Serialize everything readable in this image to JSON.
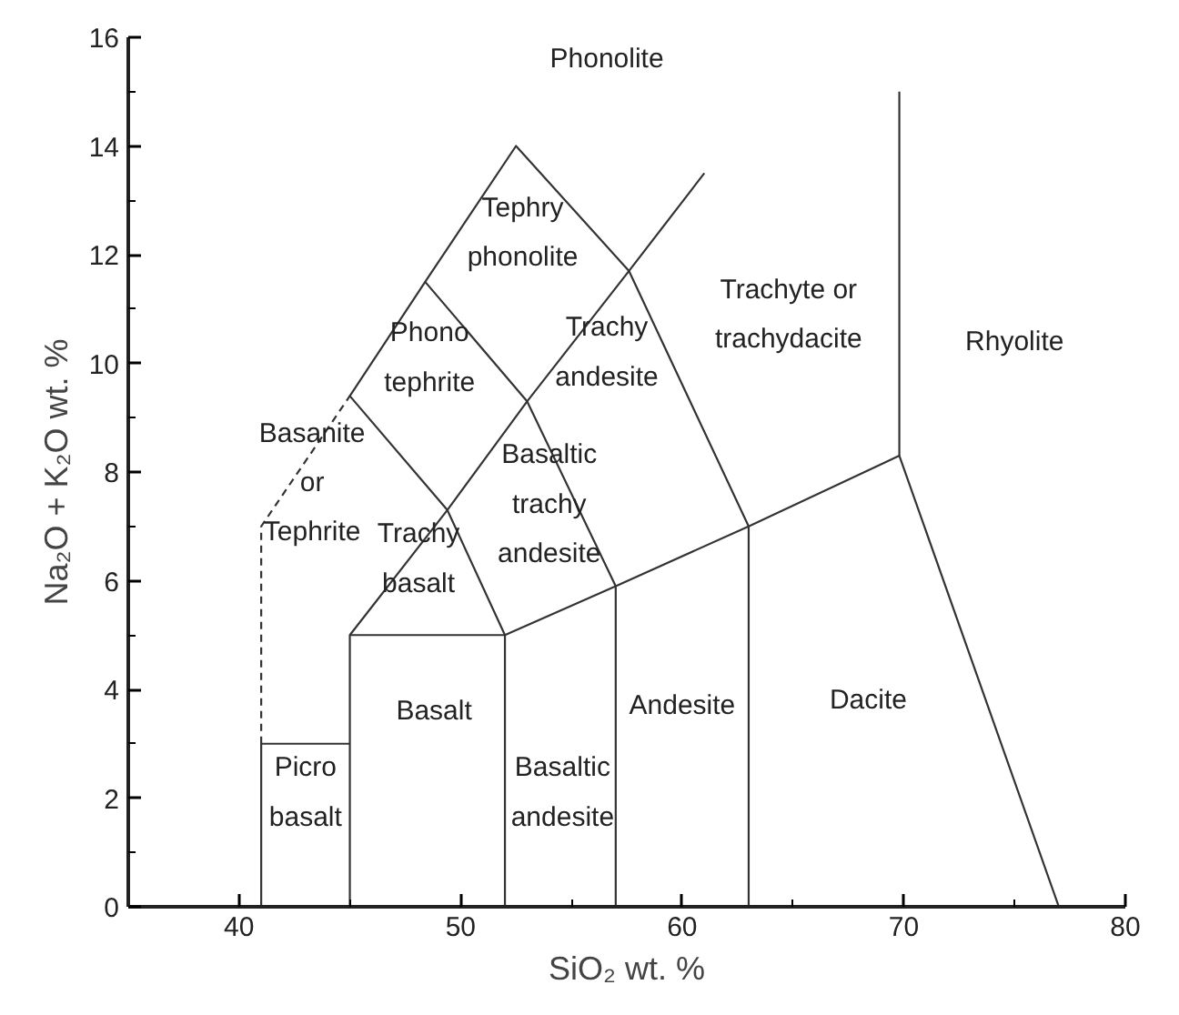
{
  "chart_data": {
    "type": "line",
    "xlabel": "SiO₂ wt. %",
    "ylabel": "Na₂O + K₂O wt. %",
    "xlim": [
      35,
      80
    ],
    "ylim": [
      0,
      16
    ],
    "xticks": [
      40,
      {
        "value": 45,
        "label": null
      },
      50,
      {
        "value": 55,
        "label": null
      },
      60,
      {
        "value": 65,
        "label": null
      },
      70,
      {
        "value": 75,
        "label": null
      },
      80
    ],
    "yticks": [
      0,
      {
        "value": 1,
        "label": null
      },
      2,
      {
        "value": 3,
        "label": null
      },
      4,
      {
        "value": 5,
        "label": null
      },
      6,
      {
        "value": 7,
        "label": null
      },
      8,
      {
        "value": 9,
        "label": null
      },
      10,
      {
        "value": 11,
        "label": null
      },
      12,
      {
        "value": 13,
        "label": null
      },
      14,
      {
        "value": 15,
        "label": null
      },
      16
    ],
    "grid": false,
    "marker": "none",
    "line_style": "solid",
    "series": [
      {
        "color": "#333333",
        "x": [
          41,
          41,
          45
        ],
        "values": [
          0,
          3,
          3
        ]
      },
      {
        "color": "#333333",
        "x": [
          45,
          45,
          52,
          52
        ],
        "values": [
          0,
          5,
          5,
          0
        ]
      },
      {
        "color": "#333333",
        "x": [
          52,
          57,
          63,
          69.8,
          77
        ],
        "values": [
          5,
          5.9,
          7,
          8.3,
          0
        ]
      },
      {
        "color": "#333333",
        "x": [
          69.8,
          69.8
        ],
        "values": [
          8.3,
          15
        ]
      },
      {
        "color": "#333333",
        "x": [
          45,
          49.4,
          53,
          57.6,
          61
        ],
        "values": [
          5,
          7.3,
          9.3,
          11.7,
          13.5
        ]
      },
      {
        "color": "#333333",
        "x": [
          52,
          49.4,
          45,
          48.4,
          52.5,
          57.6,
          63,
          63
        ],
        "values": [
          5,
          7.3,
          9.4,
          11.5,
          14,
          11.7,
          7,
          0
        ]
      },
      {
        "color": "#333333",
        "x": [
          57,
          57,
          53,
          48.4
        ],
        "values": [
          0,
          5.9,
          9.3,
          11.5
        ]
      },
      {
        "color": "#333333",
        "x": [
          41,
          41,
          45
        ],
        "values": [
          3,
          7,
          9.4
        ],
        "line_style": "dashed"
      }
    ],
    "annotations": [
      "Phonolite",
      "Tephry\nphonolite",
      "Trachyte or\ntrachydacite",
      "Rhyolite",
      "Phono\ntephrite",
      "Trachy\nandesite",
      "Basanite\nor\nTephrite",
      "Basaltic\ntrachy\nandesite",
      "Trachy\nbasalt",
      "Basalt",
      "Andesite",
      "Dacite",
      "Basaltic\nandesite",
      "Picro\nbasalt"
    ]
  }
}
